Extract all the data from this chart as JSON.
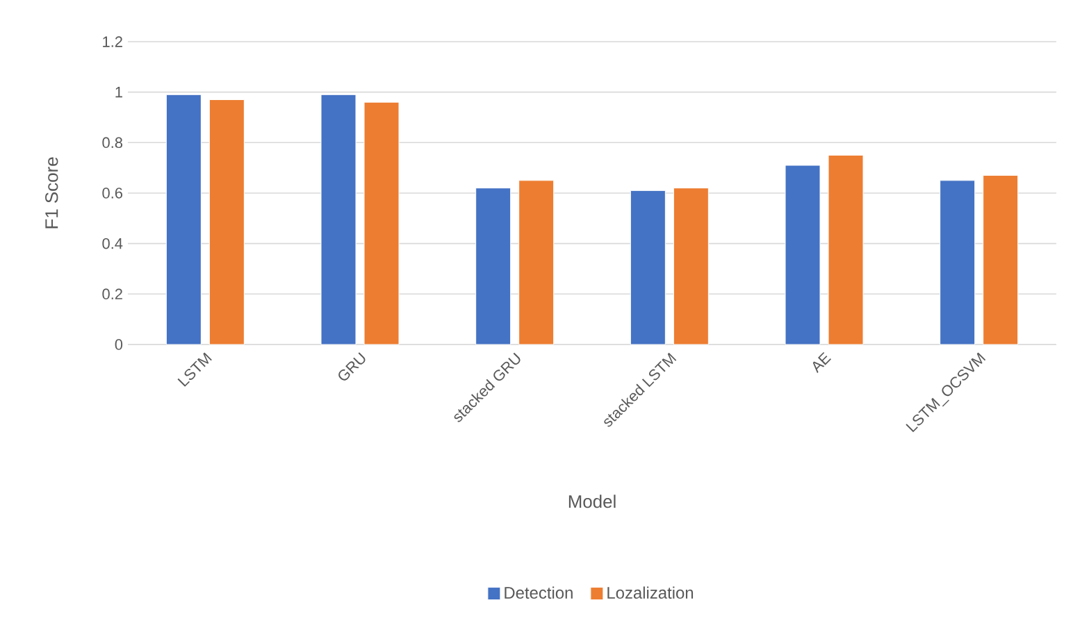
{
  "chart_data": {
    "type": "bar",
    "xlabel": "Model",
    "ylabel": "F1 Score",
    "categories": [
      "LSTM",
      "GRU",
      "stacked GRU",
      "stacked LSTM",
      "AE",
      "LSTM_OCSVM"
    ],
    "series": [
      {
        "name": "Detection",
        "color": "#4472c4",
        "values": [
          0.99,
          0.99,
          0.62,
          0.61,
          0.71,
          0.65
        ]
      },
      {
        "name": "Lozalization",
        "color": "#ed7d31",
        "values": [
          0.97,
          0.96,
          0.65,
          0.62,
          0.75,
          0.67
        ]
      }
    ],
    "ylim": [
      0,
      1.2
    ],
    "yticks": [
      0,
      0.2,
      0.4,
      0.6,
      0.8,
      1,
      1.2
    ],
    "grid": "y",
    "legend": "bottom"
  }
}
